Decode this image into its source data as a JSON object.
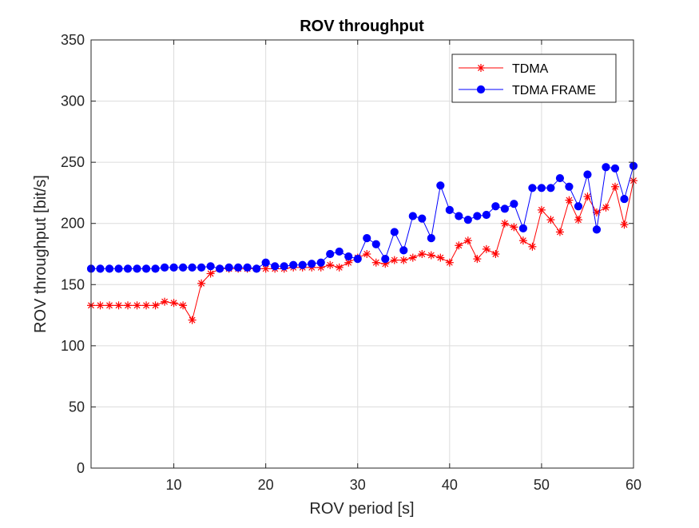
{
  "chart_data": {
    "type": "line",
    "title": "ROV throughput",
    "xlabel": "ROV period [s]",
    "ylabel": "ROV throughput [bit/s]",
    "xlim": [
      1,
      60
    ],
    "ylim": [
      0,
      350
    ],
    "xticks": [
      10,
      20,
      30,
      40,
      50,
      60
    ],
    "yticks": [
      0,
      50,
      100,
      150,
      200,
      250,
      300,
      350
    ],
    "grid": true,
    "legend_position": "top-right",
    "x": [
      1,
      2,
      3,
      4,
      5,
      6,
      7,
      8,
      9,
      10,
      11,
      12,
      13,
      14,
      15,
      16,
      17,
      18,
      19,
      20,
      21,
      22,
      23,
      24,
      25,
      26,
      27,
      28,
      29,
      30,
      31,
      32,
      33,
      34,
      35,
      36,
      37,
      38,
      39,
      40,
      41,
      42,
      43,
      44,
      45,
      46,
      47,
      48,
      49,
      50,
      51,
      52,
      53,
      54,
      55,
      56,
      57,
      58,
      59,
      60
    ],
    "series": [
      {
        "name": "TDMA",
        "color": "#ff0000",
        "marker": "asterisk",
        "values": [
          133,
          133,
          133,
          133,
          133,
          133,
          133,
          133,
          136,
          135,
          133,
          121,
          151,
          159,
          163,
          163,
          163,
          163,
          163,
          163,
          163,
          163,
          164,
          164,
          164,
          164,
          166,
          164,
          168,
          172,
          175,
          168,
          167,
          170,
          170,
          172,
          175,
          174,
          172,
          168,
          182,
          186,
          171,
          179,
          175,
          200,
          197,
          186,
          181,
          211,
          203,
          193,
          219,
          203,
          222,
          209,
          213,
          230,
          199,
          235
        ]
      },
      {
        "name": "TDMA FRAME",
        "color": "#0000ff",
        "marker": "circle",
        "values": [
          163,
          163,
          163,
          163,
          163,
          163,
          163,
          163,
          164,
          164,
          164,
          164,
          164,
          165,
          163,
          164,
          164,
          164,
          163,
          168,
          165,
          165,
          166,
          166,
          167,
          168,
          175,
          177,
          173,
          171,
          188,
          183,
          171,
          193,
          178,
          206,
          204,
          188,
          231,
          211,
          206,
          203,
          206,
          207,
          214,
          212,
          216,
          196,
          229,
          229,
          229,
          237,
          230,
          214,
          240,
          195,
          246,
          245,
          220,
          247
        ]
      }
    ]
  }
}
